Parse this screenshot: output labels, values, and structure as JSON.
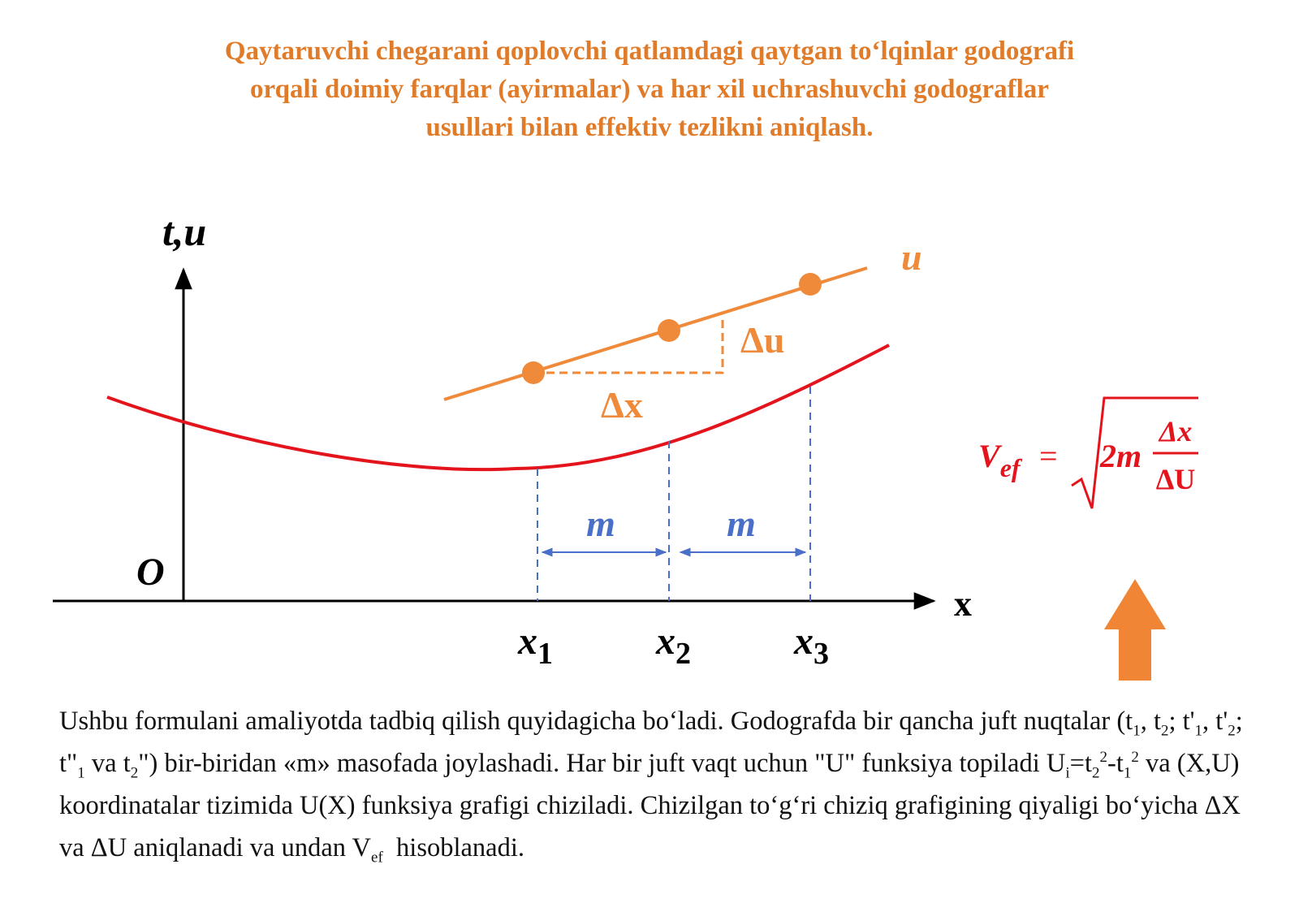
{
  "header": {
    "title_lines": [
      "Qaytaruvchi chegarani qoplovchi qatlamdagi qaytgan to‘lqinlar godografi",
      "orqali doimiy farqlar (ayirmalar) va har xil uchrashuvchi godograflar",
      "usullari bilan effektiv tezlikni aniqlash."
    ]
  },
  "diagram": {
    "y_axis_label": "t,u",
    "origin_label": "O",
    "x_axis_label": "x",
    "line_label": "u",
    "delta_u": "Δu",
    "delta_x": "Δx",
    "spacing_labels": [
      "m",
      "m"
    ],
    "x_points": [
      {
        "base": "x",
        "sub": "1"
      },
      {
        "base": "x",
        "sub": "2"
      },
      {
        "base": "x",
        "sub": "3"
      }
    ],
    "formula": {
      "lhs": "V",
      "lhs_sub": "ef",
      "equals": "=",
      "factor": "2m",
      "numerator": "Δx",
      "denominator": "ΔU"
    }
  },
  "paragraph": {
    "parts": [
      "Ushbu formulani amaliyotda tadbiq qilish quyidagicha bo‘ladi. Godografda bir qancha juft nuqtalar (t",
      "1",
      ", t",
      "2",
      "; t'",
      "1",
      ", t'",
      "2",
      "; t\"",
      "1",
      " va t",
      "2",
      "\") bir-biridan «m» masofada joylashadi. Har bir juft vaqt uchun \"U\" funksiya topiladi U",
      "i",
      "=t",
      "2",
      "2",
      "-t",
      "1",
      "2",
      " va (X,U) koordinatalar tizimida U(X) funksiya grafigi chiziladi. Chizilgan to‘g‘ri chiziq grafigining qiyaligi bo‘yicha ΔX va ΔU aniqlanadi va undan V",
      "ef",
      "  hisoblanadi."
    ]
  }
}
